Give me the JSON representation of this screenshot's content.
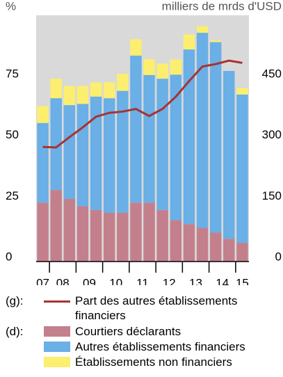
{
  "chart_data": {
    "type": "bar",
    "y_label": "%",
    "y2_label": "milliers de mrds d'USD",
    "axis_notes": [
      "(g):",
      "(d):"
    ],
    "categories": [
      "07",
      "08",
      null,
      "09",
      null,
      "10",
      null,
      "11",
      null,
      "12",
      null,
      "13",
      null,
      "14",
      null,
      "15"
    ],
    "ylim": [
      0,
      101
    ],
    "yticks": [
      0,
      25,
      50,
      75
    ],
    "y2lim": [
      0,
      606
    ],
    "y2ticks": [
      0,
      150,
      300,
      450
    ],
    "background": "#d9d9d9",
    "series": [
      {
        "name": "Part des autres établissements financiers",
        "type": "line",
        "color": "#a83232",
        "values": [
          47,
          46.8,
          51,
          55,
          59.4,
          61,
          61.5,
          62.6,
          59.7,
          62.6,
          67.6,
          74,
          80,
          81,
          82.4,
          81.5
        ]
      },
      {
        "name": "Courtiers déclarants",
        "type": "bar",
        "axis": "y2",
        "color": "#c47f8c",
        "values": [
          145,
          176,
          154,
          136,
          127,
          120,
          120,
          145,
          145,
          127,
          102,
          92,
          83,
          71,
          56,
          46
        ]
      },
      {
        "name": "Autres établissements financiers",
        "type": "bar",
        "axis": "y2",
        "color": "#6aafe6",
        "values": [
          196,
          226,
          231,
          252,
          279,
          282,
          300,
          362,
          314,
          323,
          358,
          430,
          480,
          469,
          413,
          365
        ]
      },
      {
        "name": "Établissements non financiers",
        "type": "bar",
        "axis": "y2",
        "color": "#fcee6e",
        "values": [
          42,
          48,
          47,
          44,
          35,
          39,
          42,
          40,
          39,
          37,
          37,
          37,
          16,
          4,
          0,
          16
        ]
      }
    ]
  }
}
